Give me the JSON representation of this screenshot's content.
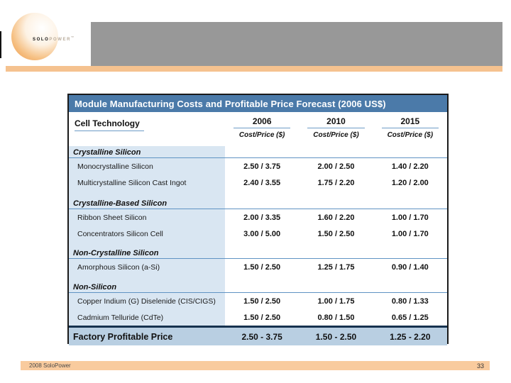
{
  "logo": {
    "brand_part1": "SOLO",
    "brand_part2": "POWER",
    "trademark": "™"
  },
  "table": {
    "title": "Module Manufacturing Costs and Profitable Price Forecast (2006 US$)",
    "row_header": "Cell Technology",
    "columns": [
      {
        "year": "2006",
        "sub": "Cost/Price ($)"
      },
      {
        "year": "2010",
        "sub": "Cost/Price ($)"
      },
      {
        "year": "2015",
        "sub": "Cost/Price ($)"
      }
    ],
    "groups": [
      {
        "label": "Crystalline Silicon",
        "rows": [
          {
            "label": "Monocrystalline Silicon",
            "values": [
              "2.50 / 3.75",
              "2.00 / 2.50",
              "1.40 / 2.20"
            ]
          },
          {
            "label": "Multicrystalline Silicon Cast Ingot",
            "values": [
              "2.40 / 3.55",
              "1.75 / 2.20",
              "1.20 / 2.00"
            ]
          }
        ]
      },
      {
        "label": "Crystalline-Based Silicon",
        "rows": [
          {
            "label": "Ribbon Sheet Silicon",
            "values": [
              "2.00 / 3.35",
              "1.60 / 2.20",
              "1.00 / 1.70"
            ]
          },
          {
            "label": "Concentrators Silicon Cell",
            "values": [
              "3.00 / 5.00",
              "1.50 / 2.50",
              "1.00 / 1.70"
            ]
          }
        ]
      },
      {
        "label": "Non-Crystalline Silicon",
        "rows": [
          {
            "label": "Amorphous Silicon (a-Si)",
            "values": [
              "1.50 / 2.50",
              "1.25 / 1.75",
              "0.90 / 1.40"
            ]
          }
        ]
      },
      {
        "label": "Non-Silicon",
        "rows": [
          {
            "label": "Copper Indium (G) Diselenide (CIS/CIGS)",
            "values": [
              "1.50 / 2.50",
              "1.00 / 1.75",
              "0.80 / 1.33"
            ]
          },
          {
            "label": "Cadmium Telluride (CdTe)",
            "values": [
              "1.50 / 2.50",
              "0.80 / 1.50",
              "0.65 / 1.25"
            ]
          }
        ]
      }
    ],
    "footer_row": {
      "label": "Factory Profitable Price",
      "values": [
        "2.50 - 3.75",
        "1.50 - 2.50",
        "1.25 - 2.20"
      ]
    }
  },
  "footer": {
    "copyright": "2008 SoloPower",
    "page_number": "33"
  },
  "colors": {
    "title_bar": "#4b7aa9",
    "underline_blue": "#6d9cc7",
    "left_column": "#d9e6f2",
    "footer_row": "#b9cfe2",
    "navy_rule": "#16324f",
    "gray_band": "#989898",
    "top_rule": "#f5c28f",
    "bottom_bar": "#f9cb9e",
    "logo_orange": "#ec9440"
  }
}
